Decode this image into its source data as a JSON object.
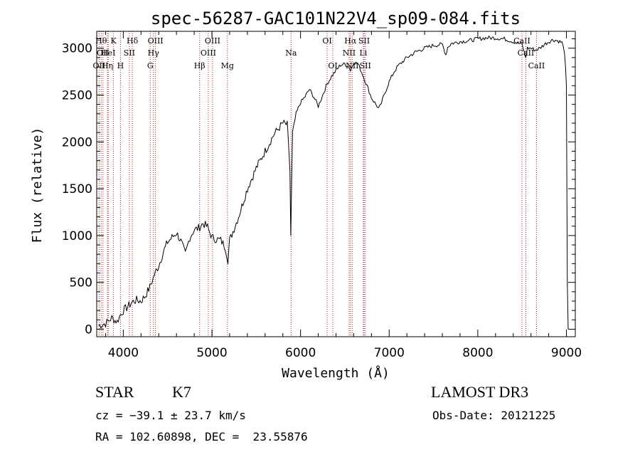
{
  "chart_data": {
    "type": "line",
    "title": "spec-56287-GAC101N22V4_sp09-084.fits",
    "xlabel": "Wavelength (Å)",
    "ylabel": "Flux (relative)",
    "xlim": [
      3700,
      9100
    ],
    "ylim": [
      -80,
      3180
    ],
    "x_ticks": [
      4000,
      5000,
      6000,
      7000,
      8000,
      9000
    ],
    "y_ticks": [
      0,
      500,
      1000,
      1500,
      2000,
      2500,
      3000
    ],
    "grid": false,
    "line_color": "#000000",
    "marker_color": "#b22222",
    "series": [
      {
        "name": "spectrum",
        "points": [
          [
            3720,
            40
          ],
          [
            3800,
            60
          ],
          [
            3870,
            120
          ],
          [
            3930,
            80
          ],
          [
            3970,
            160
          ],
          [
            4000,
            200
          ],
          [
            4050,
            240
          ],
          [
            4100,
            290
          ],
          [
            4150,
            310
          ],
          [
            4200,
            300
          ],
          [
            4250,
            360
          ],
          [
            4300,
            450
          ],
          [
            4350,
            580
          ],
          [
            4400,
            680
          ],
          [
            4450,
            820
          ],
          [
            4500,
            930
          ],
          [
            4550,
            980
          ],
          [
            4600,
            1030
          ],
          [
            4650,
            940
          ],
          [
            4700,
            800
          ],
          [
            4750,
            980
          ],
          [
            4800,
            1060
          ],
          [
            4850,
            1080
          ],
          [
            4900,
            1130
          ],
          [
            4950,
            1090
          ],
          [
            5000,
            980
          ],
          [
            5050,
            960
          ],
          [
            5100,
            950
          ],
          [
            5150,
            880
          ],
          [
            5180,
            740
          ],
          [
            5200,
            950
          ],
          [
            5300,
            1200
          ],
          [
            5400,
            1500
          ],
          [
            5500,
            1720
          ],
          [
            5600,
            1900
          ],
          [
            5700,
            2080
          ],
          [
            5800,
            2200
          ],
          [
            5850,
            2180
          ],
          [
            5880,
            1700
          ],
          [
            5890,
            1000
          ],
          [
            5900,
            1600
          ],
          [
            5910,
            2100
          ],
          [
            5950,
            2300
          ],
          [
            6000,
            2420
          ],
          [
            6050,
            2480
          ],
          [
            6100,
            2560
          ],
          [
            6150,
            2480
          ],
          [
            6200,
            2380
          ],
          [
            6250,
            2500
          ],
          [
            6300,
            2620
          ],
          [
            6350,
            2700
          ],
          [
            6400,
            2760
          ],
          [
            6450,
            2820
          ],
          [
            6500,
            2830
          ],
          [
            6550,
            2800
          ],
          [
            6563,
            2760
          ],
          [
            6600,
            2850
          ],
          [
            6650,
            2830
          ],
          [
            6700,
            2720
          ],
          [
            6750,
            2600
          ],
          [
            6800,
            2470
          ],
          [
            6850,
            2400
          ],
          [
            6880,
            2360
          ],
          [
            6900,
            2380
          ],
          [
            6950,
            2520
          ],
          [
            7000,
            2640
          ],
          [
            7050,
            2740
          ],
          [
            7100,
            2810
          ],
          [
            7200,
            2900
          ],
          [
            7300,
            2960
          ],
          [
            7400,
            3000
          ],
          [
            7500,
            3030
          ],
          [
            7600,
            3040
          ],
          [
            7640,
            2930
          ],
          [
            7660,
            3010
          ],
          [
            7700,
            3050
          ],
          [
            7800,
            3070
          ],
          [
            7900,
            3080
          ],
          [
            8000,
            3100
          ],
          [
            8100,
            3110
          ],
          [
            8200,
            3110
          ],
          [
            8300,
            3100
          ],
          [
            8400,
            3070
          ],
          [
            8500,
            3040
          ],
          [
            8540,
            2900
          ],
          [
            8560,
            3000
          ],
          [
            8600,
            3000
          ],
          [
            8650,
            2980
          ],
          [
            8700,
            3000
          ],
          [
            8750,
            3040
          ],
          [
            8800,
            3070
          ],
          [
            8850,
            3090
          ],
          [
            8900,
            3080
          ],
          [
            8950,
            3060
          ],
          [
            8980,
            2950
          ],
          [
            9000,
            2600
          ],
          [
            9010,
            500
          ],
          [
            9020,
            0
          ]
        ]
      }
    ],
    "line_markers": [
      {
        "wl": 3727,
        "label": "OII",
        "row": 3
      },
      {
        "wl": 3750,
        "label": "Hθ",
        "row": 1
      },
      {
        "wl": 3770,
        "label": "OII",
        "row": 2
      },
      {
        "wl": 3820,
        "label": "Hη",
        "row": 3
      },
      {
        "wl": 3830,
        "label": "HeI",
        "row": 2
      },
      {
        "wl": 3889,
        "label": "K",
        "row": 1
      },
      {
        "wl": 3968,
        "label": "H",
        "row": 3
      },
      {
        "wl": 4068,
        "label": "SII",
        "row": 2
      },
      {
        "wl": 4102,
        "label": "Hδ",
        "row": 1
      },
      {
        "wl": 4304,
        "label": "G",
        "row": 3
      },
      {
        "wl": 4340,
        "label": "Hγ",
        "row": 2
      },
      {
        "wl": 4363,
        "label": "OIII",
        "row": 1
      },
      {
        "wl": 4861,
        "label": "Hβ",
        "row": 3
      },
      {
        "wl": 4959,
        "label": "OIII",
        "row": 2
      },
      {
        "wl": 5007,
        "label": "OIII",
        "row": 1
      },
      {
        "wl": 5175,
        "label": "Mg",
        "row": 3
      },
      {
        "wl": 5893,
        "label": "Na",
        "row": 2
      },
      {
        "wl": 6300,
        "label": "OI",
        "row": 1
      },
      {
        "wl": 6364,
        "label": "OI",
        "row": 3
      },
      {
        "wl": 6548,
        "label": "NII",
        "row": 2
      },
      {
        "wl": 6563,
        "label": "Hα",
        "row": 1
      },
      {
        "wl": 6583,
        "label": "NII",
        "row": 3
      },
      {
        "wl": 6708,
        "label": "Li",
        "row": 2
      },
      {
        "wl": 6717,
        "label": "SII",
        "row": 1
      },
      {
        "wl": 6731,
        "label": "SII",
        "row": 3
      },
      {
        "wl": 8498,
        "label": "CaII",
        "row": 1
      },
      {
        "wl": 8542,
        "label": "CaII",
        "row": 2
      },
      {
        "wl": 8662,
        "label": "CaII",
        "row": 3
      }
    ]
  },
  "info": {
    "class": "STAR",
    "subclass": "K7",
    "survey": "LAMOST DR3",
    "cz": "cz = −39.1 ± 23.7 km/s",
    "obs_date": "Obs-Date: 20121225",
    "coords": "RA = 102.60898, DEC =  23.55876"
  }
}
